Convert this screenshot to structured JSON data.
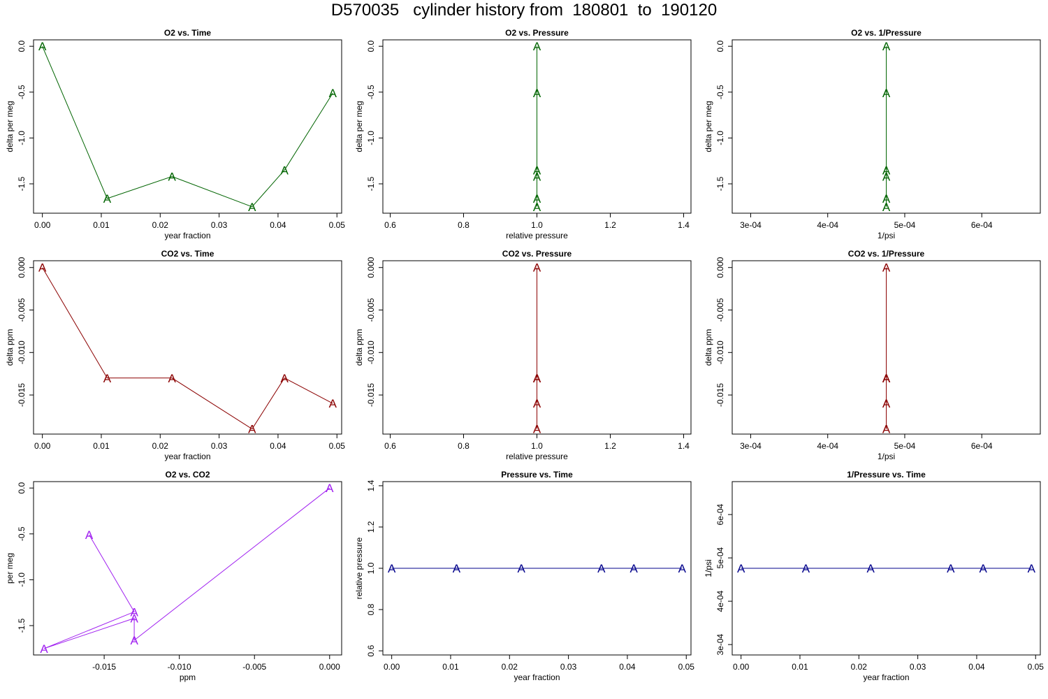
{
  "title": "D570035   cylinder history from  180801  to  190120",
  "colors": {
    "o2": "#006400",
    "co2": "#8b0000",
    "o2co2": "#a020f0",
    "pressure": "#00008b",
    "o2_light": "#7fbf7f",
    "co2_light": "#e07f7f"
  },
  "chart_data": [
    {
      "type": "line",
      "title": "O2 vs. Time",
      "xlabel": "year fraction",
      "ylabel": "delta per meg",
      "x": [
        0,
        0.011,
        0.022,
        0.0356,
        0.0411,
        0.0493
      ],
      "y": [
        0,
        -1.66,
        -1.42,
        -1.75,
        -1.35,
        -0.51
      ],
      "symbol": "A",
      "color_key": "o2",
      "xlim": [
        -0.0015,
        0.0508
      ],
      "ylim": [
        -1.82,
        0.07
      ],
      "xticks": [
        0,
        0.01,
        0.02,
        0.03,
        0.04,
        0.05
      ],
      "xtick_labels": [
        "0.00",
        "0.01",
        "0.02",
        "0.03",
        "0.04",
        "0.05"
      ],
      "yticks": [
        0,
        -0.5,
        -1,
        -1.5
      ],
      "ytick_labels": [
        "0.0",
        "-0.5",
        "-1.0",
        "-1.5"
      ]
    },
    {
      "type": "line",
      "title": "O2 vs. Pressure",
      "xlabel": "relative pressure",
      "ylabel": "delta per meg",
      "x": [
        1,
        1,
        1,
        1,
        1,
        1
      ],
      "y": [
        0,
        -1.66,
        -1.42,
        -1.75,
        -1.35,
        -0.51
      ],
      "symbol": "A",
      "color_key": "o2",
      "xlim": [
        0.58,
        1.42
      ],
      "ylim": [
        -1.82,
        0.07
      ],
      "xticks": [
        0.6,
        0.8,
        1.0,
        1.2,
        1.4
      ],
      "xtick_labels": [
        "0.6",
        "0.8",
        "1.0",
        "1.2",
        "1.4"
      ],
      "yticks": [
        0,
        -0.5,
        -1,
        -1.5
      ],
      "ytick_labels": [
        "0.0",
        "-0.5",
        "-1.0",
        "-1.5"
      ]
    },
    {
      "type": "line",
      "title": "O2 vs. 1/Pressure",
      "xlabel": "1/psi",
      "ylabel": "delta per meg",
      "x": [
        0.000476,
        0.000476,
        0.000476,
        0.000476,
        0.000476,
        0.000476
      ],
      "y": [
        0,
        -1.66,
        -1.42,
        -1.75,
        -1.35,
        -0.51
      ],
      "symbol": "A",
      "color_key": "o2",
      "xlim": [
        0.000276,
        0.000676
      ],
      "ylim": [
        -1.82,
        0.07
      ],
      "xticks": [
        0.0003,
        0.0004,
        0.0005,
        0.0006
      ],
      "xtick_labels": [
        "3e-04",
        "4e-04",
        "5e-04",
        "6e-04"
      ],
      "yticks": [
        0,
        -0.5,
        -1,
        -1.5
      ],
      "ytick_labels": [
        "0.0",
        "-0.5",
        "-1.0",
        "-1.5"
      ]
    },
    {
      "type": "line",
      "title": "CO2 vs. Time",
      "xlabel": "year fraction",
      "ylabel": "delta ppm",
      "x": [
        0,
        0.011,
        0.022,
        0.0356,
        0.0411,
        0.0493
      ],
      "y": [
        0,
        -0.013,
        -0.013,
        -0.019,
        -0.013,
        -0.016
      ],
      "symbol": "A",
      "color_key": "co2",
      "xlim": [
        -0.0015,
        0.0508
      ],
      "ylim": [
        -0.0196,
        0.0008
      ],
      "xticks": [
        0,
        0.01,
        0.02,
        0.03,
        0.04,
        0.05
      ],
      "xtick_labels": [
        "0.00",
        "0.01",
        "0.02",
        "0.03",
        "0.04",
        "0.05"
      ],
      "yticks": [
        0,
        -0.005,
        -0.01,
        -0.015
      ],
      "ytick_labels": [
        "0.000",
        "-0.005",
        "-0.010",
        "-0.015"
      ]
    },
    {
      "type": "line",
      "title": "CO2 vs. Pressure",
      "xlabel": "relative pressure",
      "ylabel": "delta ppm",
      "x": [
        1,
        1,
        1,
        1,
        1,
        1
      ],
      "y": [
        0,
        -0.013,
        -0.013,
        -0.019,
        -0.013,
        -0.016
      ],
      "symbol": "A",
      "color_key": "co2",
      "xlim": [
        0.58,
        1.42
      ],
      "ylim": [
        -0.0196,
        0.0008
      ],
      "xticks": [
        0.6,
        0.8,
        1.0,
        1.2,
        1.4
      ],
      "xtick_labels": [
        "0.6",
        "0.8",
        "1.0",
        "1.2",
        "1.4"
      ],
      "yticks": [
        0,
        -0.005,
        -0.01,
        -0.015
      ],
      "ytick_labels": [
        "0.000",
        "-0.005",
        "-0.010",
        "-0.015"
      ]
    },
    {
      "type": "line",
      "title": "CO2 vs. 1/Pressure",
      "xlabel": "1/psi",
      "ylabel": "delta ppm",
      "x": [
        0.000476,
        0.000476,
        0.000476,
        0.000476,
        0.000476,
        0.000476
      ],
      "y": [
        0,
        -0.013,
        -0.013,
        -0.019,
        -0.013,
        -0.016
      ],
      "symbol": "A",
      "color_key": "co2",
      "xlim": [
        0.000276,
        0.000676
      ],
      "ylim": [
        -0.0196,
        0.0008
      ],
      "xticks": [
        0.0003,
        0.0004,
        0.0005,
        0.0006
      ],
      "xtick_labels": [
        "3e-04",
        "4e-04",
        "5e-04",
        "6e-04"
      ],
      "yticks": [
        0,
        -0.005,
        -0.01,
        -0.015
      ],
      "ytick_labels": [
        "0.000",
        "-0.005",
        "-0.010",
        "-0.015"
      ]
    },
    {
      "type": "line",
      "title": "O2 vs. CO2",
      "xlabel": "ppm",
      "ylabel": "per meg",
      "x": [
        0,
        -0.013,
        -0.013,
        -0.019,
        -0.013,
        -0.016
      ],
      "y": [
        0,
        -1.66,
        -1.42,
        -1.75,
        -1.35,
        -0.51
      ],
      "symbol": "A",
      "color_key": "o2co2",
      "xlim": [
        -0.0197,
        0.0008
      ],
      "ylim": [
        -1.82,
        0.07
      ],
      "xticks": [
        -0.015,
        -0.01,
        -0.005,
        0
      ],
      "xtick_labels": [
        "-0.015",
        "-0.010",
        "-0.005",
        "0.000"
      ],
      "yticks": [
        0,
        -0.5,
        -1,
        -1.5
      ],
      "ytick_labels": [
        "0.0",
        "-0.5",
        "-1.0",
        "-1.5"
      ]
    },
    {
      "type": "line",
      "title": "Pressure vs. Time",
      "xlabel": "year fraction",
      "ylabel": "relative pressure",
      "x": [
        0,
        0.011,
        0.022,
        0.0356,
        0.0411,
        0.0493
      ],
      "y": [
        1,
        1,
        1,
        1,
        1,
        1
      ],
      "symbol": "A",
      "color_key": "pressure",
      "xlim": [
        -0.0015,
        0.0508
      ],
      "ylim": [
        0.58,
        1.42
      ],
      "xticks": [
        0,
        0.01,
        0.02,
        0.03,
        0.04,
        0.05
      ],
      "xtick_labels": [
        "0.00",
        "0.01",
        "0.02",
        "0.03",
        "0.04",
        "0.05"
      ],
      "yticks": [
        0.6,
        0.8,
        1.0,
        1.2,
        1.4
      ],
      "ytick_labels": [
        "0.6",
        "0.8",
        "1.0",
        "1.2",
        "1.4"
      ]
    },
    {
      "type": "line",
      "title": "1/Pressure vs. Time",
      "xlabel": "year fraction",
      "ylabel": "1/psi",
      "x": [
        0,
        0.011,
        0.022,
        0.0356,
        0.0411,
        0.0493
      ],
      "y": [
        0.000476,
        0.000476,
        0.000476,
        0.000476,
        0.000476,
        0.000476
      ],
      "symbol": "A",
      "color_key": "pressure",
      "xlim": [
        -0.0015,
        0.0508
      ],
      "ylim": [
        0.000276,
        0.000676
      ],
      "xticks": [
        0,
        0.01,
        0.02,
        0.03,
        0.04,
        0.05
      ],
      "xtick_labels": [
        "0.00",
        "0.01",
        "0.02",
        "0.03",
        "0.04",
        "0.05"
      ],
      "yticks": [
        0.0003,
        0.0004,
        0.0005,
        0.0006
      ],
      "ytick_labels": [
        "3e-04",
        "4e-04",
        "5e-04",
        "6e-04"
      ]
    }
  ]
}
